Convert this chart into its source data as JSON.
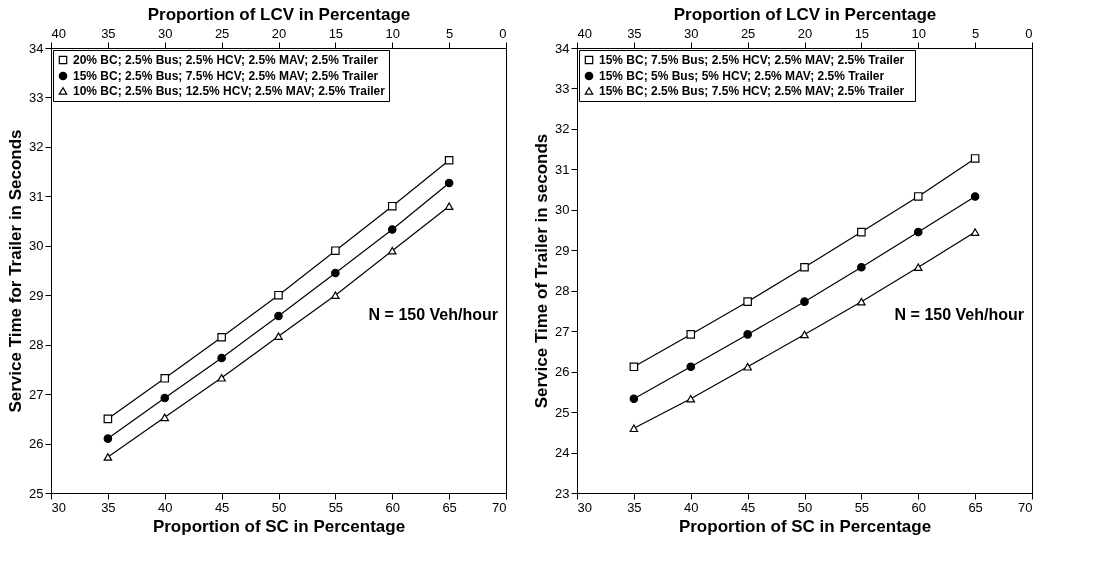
{
  "chart_data": [
    {
      "type": "line",
      "xlabel": "Proportion of SC in Percentage",
      "x2label": "Proportion of LCV in Percentage",
      "ylabel": "Service Time for Trailer in Seconds",
      "x": [
        35,
        40,
        45,
        50,
        55,
        60,
        65
      ],
      "series": [
        {
          "name": "20% BC; 2.5% Bus; 2.5%  HCV;  2.5% MAV; 2.5% Trailer",
          "color": "#000000",
          "marker": "square",
          "values": [
            26.5,
            27.32,
            28.15,
            29.0,
            29.9,
            30.8,
            31.73
          ]
        },
        {
          "name": "15% BC; 2.5% Bus; 7.5%  HCV;  2.5% MAV; 2.5% Trailer",
          "color": "#000000",
          "marker": "circle",
          "values": [
            26.1,
            26.92,
            27.73,
            28.58,
            29.45,
            30.33,
            31.27
          ]
        },
        {
          "name": "10% BC; 2.5% Bus; 12.5% HCV; 2.5% MAV; 2.5% Trailer",
          "color": "#000000",
          "marker": "triangle",
          "values": [
            25.73,
            26.53,
            27.33,
            28.17,
            29.0,
            29.9,
            30.8
          ]
        }
      ],
      "xlim": [
        30,
        70
      ],
      "xticks": [
        30,
        35,
        40,
        45,
        50,
        55,
        60,
        65,
        70
      ],
      "x2lim": [
        40,
        0
      ],
      "x2ticks": [
        40,
        35,
        30,
        25,
        20,
        15,
        10,
        5,
        0
      ],
      "ylim": [
        25,
        34
      ],
      "yticks": [
        25,
        26,
        27,
        28,
        29,
        30,
        31,
        32,
        33,
        34
      ],
      "annotations": [
        "N = 150 Veh/hour"
      ],
      "legend": "top left",
      "grid": false
    },
    {
      "type": "line",
      "xlabel": "Proportion of SC in Percentage",
      "x2label": "Proportion of LCV in Percentage",
      "ylabel": "Service Time of Trailer in seconds",
      "x": [
        35,
        40,
        45,
        50,
        55,
        60,
        65
      ],
      "series": [
        {
          "name": "15% BC; 7.5% Bus; 2.5%  HCV;  2.5% MAV; 2.5% Trailer",
          "color": "#000000",
          "marker": "square",
          "values": [
            26.12,
            26.92,
            27.73,
            28.58,
            29.45,
            30.33,
            31.27
          ]
        },
        {
          "name": "15% BC;    5% Bus;    5%  HCV;  2.5% MAV; 2.5% Trailer",
          "color": "#000000",
          "marker": "circle",
          "values": [
            25.33,
            26.12,
            26.92,
            27.73,
            28.58,
            29.45,
            30.33
          ]
        },
        {
          "name": "15% BC; 2.5% Bus; 7.5%  HCV;  2.5% MAV; 2.5% Trailer",
          "color": "#000000",
          "marker": "triangle",
          "values": [
            24.6,
            25.33,
            26.12,
            26.92,
            27.73,
            28.58,
            29.45
          ]
        }
      ],
      "xlim": [
        30,
        70
      ],
      "xticks": [
        30,
        35,
        40,
        45,
        50,
        55,
        60,
        65,
        70
      ],
      "x2lim": [
        40,
        0
      ],
      "x2ticks": [
        40,
        35,
        30,
        25,
        20,
        15,
        10,
        5,
        0
      ],
      "ylim": [
        23,
        34
      ],
      "yticks": [
        23,
        24,
        25,
        26,
        27,
        28,
        29,
        30,
        31,
        32,
        33,
        34
      ],
      "annotations": [
        "N = 150 Veh/hour"
      ],
      "legend": "top left",
      "grid": false
    }
  ]
}
